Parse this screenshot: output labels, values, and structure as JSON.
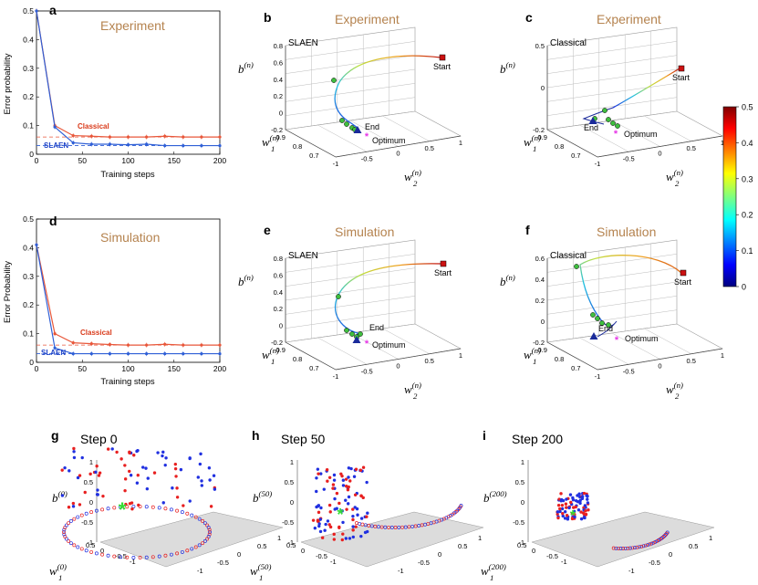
{
  "colors": {
    "classical": "#e8573a",
    "slaen": "#2f5fd6",
    "slaen_label": "#1f44c8",
    "classical_label": "#d93a1a",
    "title": "#b5834f",
    "start_marker": "#cc1111",
    "optimum_marker": "#e636e6",
    "end_marker": "#1a2a9a",
    "waypoint": "#3fbf3f",
    "point_red": "#e82020",
    "point_blue": "#2030e0",
    "plane": "#dcdcdc",
    "colormap": [
      "#00007f",
      "#0000ff",
      "#007fff",
      "#00ffff",
      "#7fff7f",
      "#ffff00",
      "#ff7f00",
      "#ff0000",
      "#7f0000"
    ]
  },
  "panels": {
    "a": {
      "label": "a",
      "title": "Experiment"
    },
    "b": {
      "label": "b",
      "title": "Experiment",
      "inset": "SLAEN"
    },
    "c": {
      "label": "c",
      "title": "Experiment",
      "inset": "Classical"
    },
    "d": {
      "label": "d",
      "title": "Simulation"
    },
    "e": {
      "label": "e",
      "title": "Simulation",
      "inset": "SLAEN"
    },
    "f": {
      "label": "f",
      "title": "Simulation",
      "inset": "Classical"
    },
    "g": {
      "label": "g",
      "title": "Step 0",
      "zlabel": "b",
      "zsup": "(0)",
      "w1sup": "(0)",
      "w2sup": "(0)"
    },
    "h": {
      "label": "h",
      "title": "Step 50",
      "zlabel": "b",
      "zsup": "(50)",
      "w1sup": "(50)",
      "w2sup": "(50)"
    },
    "i": {
      "label": "i",
      "title": "Step 200",
      "zlabel": "b",
      "zsup": "(200)",
      "w1sup": "(200)",
      "w2sup": "(200)"
    }
  },
  "annotations": {
    "start": "Start",
    "end": "End",
    "optimum": "Optimum"
  },
  "axis_text": {
    "b": "b",
    "w": "w",
    "n": "(n)",
    "sub1": "1",
    "sub2": "2"
  },
  "ticks3d": {
    "z": [
      "0.8",
      "0.6",
      "0.4",
      "0.2",
      "0",
      "-0.2"
    ],
    "w1": [
      "0.9",
      "0.8",
      "0.7"
    ],
    "w2": [
      "1",
      "0.5",
      "0",
      "-0.5",
      "-1"
    ],
    "z_scatter": [
      "1",
      "0.5",
      "0",
      "-0.5",
      "-1"
    ],
    "w1_scatter": [
      "0.5",
      "0",
      "-0.5",
      "-1"
    ],
    "w2_scatter": [
      "1",
      "0.5",
      "0",
      "-0.5",
      "-1"
    ],
    "z_c": [
      "0.5",
      "0",
      "-0.2"
    ],
    "z_f": [
      "0.6",
      "0.4",
      "0.2",
      "0",
      "-0.2"
    ]
  },
  "colorbar": {
    "ticks": [
      "0.5",
      "0.4",
      "0.3",
      "0.2",
      "0.1",
      "0"
    ],
    "min": 0,
    "max": 0.5
  },
  "chart_data": [
    {
      "id": "a",
      "type": "line",
      "title": "Experiment",
      "xlabel": "Training steps",
      "ylabel": "Error probability",
      "xlim": [
        0,
        200
      ],
      "ylim": [
        0,
        0.5
      ],
      "xticks": [
        0,
        50,
        100,
        150,
        200
      ],
      "yticks": [
        0,
        0.1,
        0.2,
        0.3,
        0.4,
        0.5
      ],
      "series": [
        {
          "name": "Classical",
          "x": [
            0,
            20,
            40,
            60,
            80,
            100,
            120,
            140,
            160,
            180,
            200
          ],
          "values": [
            0.5,
            0.1,
            0.065,
            0.063,
            0.06,
            0.06,
            0.06,
            0.063,
            0.06,
            0.06,
            0.06
          ]
        },
        {
          "name": "SLAEN",
          "x": [
            0,
            20,
            40,
            60,
            80,
            100,
            120,
            140,
            160,
            180,
            200
          ],
          "values": [
            0.5,
            0.095,
            0.04,
            0.035,
            0.035,
            0.033,
            0.035,
            0.03,
            0.03,
            0.03,
            0.03
          ]
        }
      ],
      "reference_lines": {
        "Classical": 0.06,
        "SLAEN": 0.03
      }
    },
    {
      "id": "d",
      "type": "line",
      "title": "Simulation",
      "xlabel": "Training steps",
      "ylabel": "Error Probability",
      "xlim": [
        0,
        200
      ],
      "ylim": [
        0,
        0.5
      ],
      "xticks": [
        0,
        50,
        100,
        150,
        200
      ],
      "yticks": [
        0,
        0.1,
        0.2,
        0.3,
        0.4,
        0.5
      ],
      "series": [
        {
          "name": "Classical",
          "x": [
            0,
            20,
            40,
            60,
            80,
            100,
            120,
            140,
            160,
            180,
            200
          ],
          "values": [
            0.41,
            0.1,
            0.068,
            0.065,
            0.062,
            0.06,
            0.06,
            0.063,
            0.06,
            0.06,
            0.06
          ]
        },
        {
          "name": "SLAEN",
          "x": [
            0,
            20,
            40,
            60,
            80,
            100,
            120,
            140,
            160,
            180,
            200
          ],
          "values": [
            0.41,
            0.05,
            0.03,
            0.03,
            0.03,
            0.03,
            0.03,
            0.03,
            0.03,
            0.03,
            0.03
          ]
        }
      ],
      "reference_lines": {
        "Classical": 0.06,
        "SLAEN": 0.03
      }
    }
  ]
}
